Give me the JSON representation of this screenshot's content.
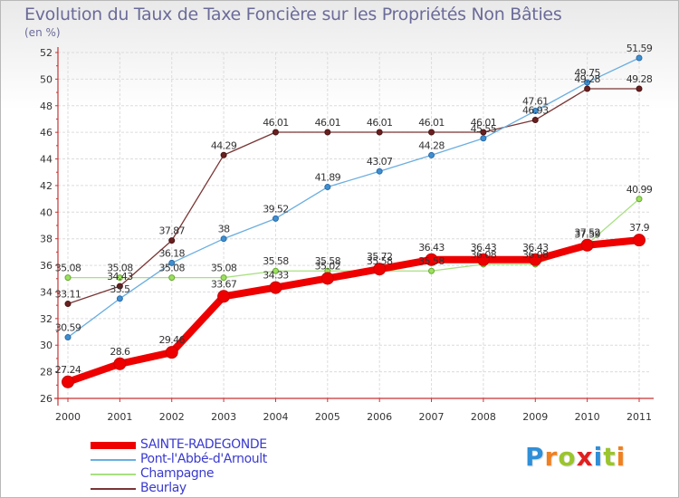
{
  "chart_data": {
    "type": "line",
    "title": "Evolution du Taux de Taxe Foncière sur les Propriétés Non Bâties",
    "ylabel": "(en %)",
    "xlabel": "",
    "x": [
      "2000",
      "2001",
      "2002",
      "2003",
      "2004",
      "2005",
      "2006",
      "2007",
      "2008",
      "2009",
      "2010",
      "2011"
    ],
    "ylim": [
      26,
      52
    ],
    "yticks": [
      26,
      28,
      30,
      32,
      34,
      36,
      38,
      40,
      42,
      44,
      46,
      48,
      50,
      52
    ],
    "grid": true,
    "legend_position": "bottom-left",
    "series": [
      {
        "name": "SAINTE-RADEGONDE",
        "color": "#ee0000",
        "values": [
          27.24,
          28.6,
          29.46,
          33.67,
          34.33,
          35.02,
          35.72,
          36.43,
          36.43,
          36.43,
          37.52,
          37.9
        ],
        "labels": [
          "27.24",
          "28.6",
          "29.46",
          "33.67",
          "34.33",
          "35.02",
          "35.72",
          "36.43",
          "36.43",
          "36.43",
          "37.52",
          "37.9"
        ]
      },
      {
        "name": "Pont-l'Abbé-d'Arnoult",
        "color": "#6aaee0",
        "values": [
          30.59,
          33.5,
          36.18,
          38,
          39.52,
          41.89,
          43.07,
          44.28,
          45.55,
          47.61,
          49.75,
          51.59
        ],
        "labels": [
          "30.59",
          "33.5",
          "36.18",
          "38",
          "39.52",
          "41.89",
          "43.07",
          "44.28",
          "45.55",
          "47.61",
          "49.75",
          "51.59"
        ]
      },
      {
        "name": "Champagne",
        "color": "#a8e080",
        "values": [
          35.08,
          35.08,
          35.08,
          35.08,
          35.58,
          35.58,
          35.58,
          35.58,
          36.08,
          36.08,
          37.59,
          40.99
        ],
        "labels": [
          "35.08",
          "35.08",
          "35.08",
          "35.08",
          "35.58",
          "35.58",
          "35.58",
          "35.58",
          "36.08",
          "36.08",
          "37.59",
          "40.99"
        ]
      },
      {
        "name": "Beurlay",
        "color": "#7a3535",
        "values": [
          33.11,
          34.43,
          37.87,
          44.29,
          46.01,
          46.01,
          46.01,
          46.01,
          46.01,
          46.93,
          49.28,
          49.28
        ],
        "labels": [
          "33.11",
          "34.43",
          "37.87",
          "44.29",
          "46.01",
          "46.01",
          "46.01",
          "46.01",
          "46.01",
          "46.93",
          "49.28",
          "49.28"
        ]
      }
    ]
  },
  "logo": {
    "letters": [
      "P",
      "r",
      "o",
      "x",
      "i",
      "t",
      "i"
    ],
    "colors": [
      "#2f8fd8",
      "#f08020",
      "#9bc52d",
      "#e02020",
      "#2f8fd8",
      "#9bc52d",
      "#f08020"
    ]
  }
}
